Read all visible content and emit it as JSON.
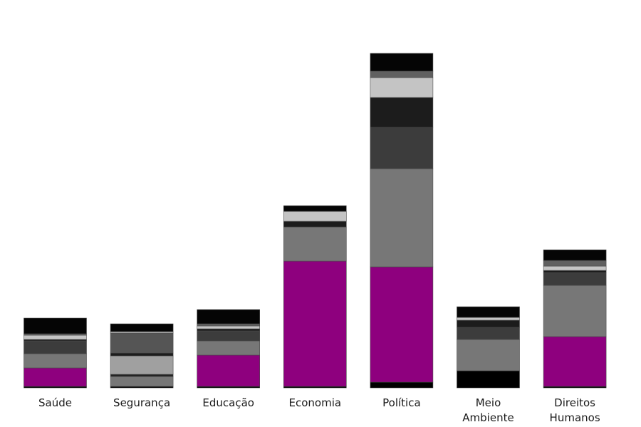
{
  "chart_data": {
    "type": "bar",
    "stacked": true,
    "legend": "none",
    "grid": false,
    "categories": [
      [
        "Saúde"
      ],
      [
        "Segurança"
      ],
      [
        "Educação"
      ],
      [
        "Economia"
      ],
      [
        "Política"
      ],
      [
        "Meio",
        "Ambiente"
      ],
      [
        "Direitos",
        "Humanos"
      ]
    ],
    "ylim": [
      0,
      480
    ],
    "series": [
      {
        "color": "#000000",
        "values": [
          2,
          2,
          2,
          2,
          8,
          24,
          2
        ]
      },
      {
        "color": "#8e007e",
        "values": [
          26,
          0,
          44,
          176,
          162,
          0,
          70
        ]
      },
      {
        "color": "#777777",
        "values": [
          20,
          14,
          20,
          48,
          138,
          44,
          72
        ]
      },
      {
        "color": "#222222",
        "values": [
          0,
          3,
          0,
          0,
          0,
          0,
          0
        ]
      },
      {
        "color": "#a0a0a0",
        "values": [
          0,
          26,
          0,
          0,
          0,
          0,
          0
        ]
      },
      {
        "color": "#3c3c3c",
        "values": [
          18,
          0,
          14,
          0,
          58,
          17,
          18
        ]
      },
      {
        "color": "#1c1c1c",
        "values": [
          2,
          4,
          3,
          8,
          42,
          10,
          3
        ]
      },
      {
        "color": "#555555",
        "values": [
          0,
          28,
          0,
          0,
          0,
          0,
          0
        ]
      },
      {
        "color": "#c4c4c4",
        "values": [
          6,
          2,
          4,
          14,
          28,
          4,
          6
        ]
      },
      {
        "color": "#606060",
        "values": [
          2,
          0,
          3,
          0,
          9,
          0,
          8
        ]
      },
      {
        "color": "#050505",
        "values": [
          22,
          11,
          20,
          8,
          25,
          15,
          15
        ]
      }
    ]
  }
}
